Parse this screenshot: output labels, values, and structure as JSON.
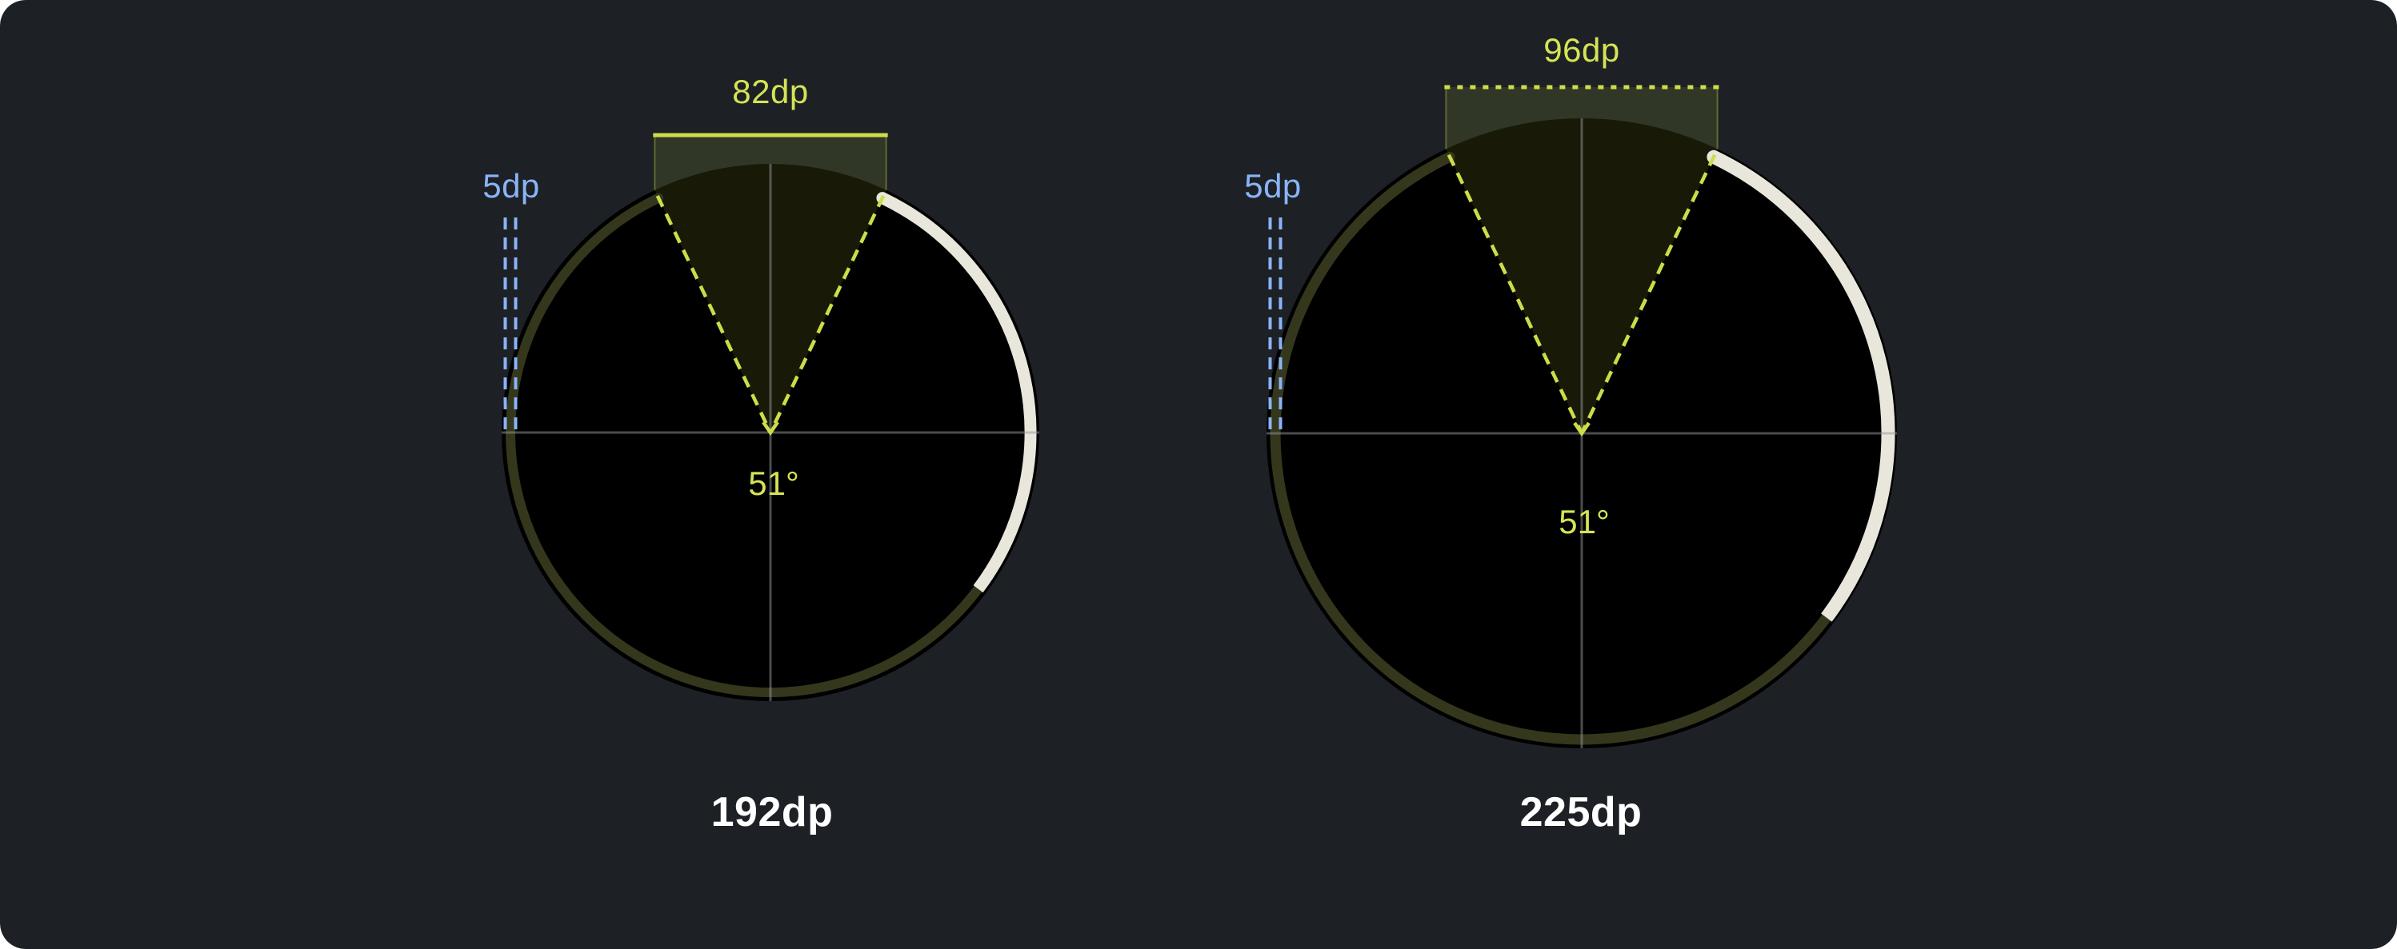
{
  "colors": {
    "page_background": "#ffffff",
    "panel_background": "#1d2125",
    "accent_green_text": "#d6e355",
    "accent_green_stroke": "#cddd4a",
    "accent_blue": "#8ab4f8",
    "track_olive": "#35371d",
    "arc_white": "#e9e6dc",
    "circle_black": "#000000",
    "crosshair_gray": "rgba(148,152,156,0.5)",
    "wedge_fill": "rgba(201,216,58,0.12)",
    "diameter_text": "#ffffff"
  },
  "diagrams": [
    {
      "id": "left",
      "top_width_label": "82dp",
      "top_bracket_style": "solid",
      "ring_thickness_label": "5dp",
      "gap_angle_label": "51°",
      "diameter_label": "192dp"
    },
    {
      "id": "right",
      "top_width_label": "96dp",
      "top_bracket_style": "dotted",
      "ring_thickness_label": "5dp",
      "gap_angle_label": "51°",
      "diameter_label": "225dp"
    }
  ]
}
